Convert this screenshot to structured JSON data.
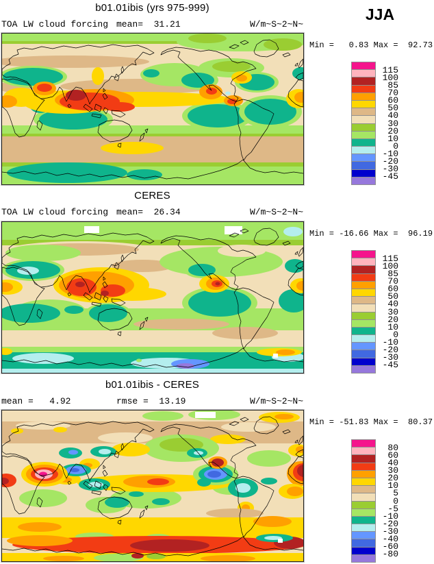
{
  "season": "JJA",
  "palette": [
    "#F5148C",
    "#FFB4BE",
    "#B22222",
    "#F23C14",
    "#FFA000",
    "#FFD700",
    "#DEB887",
    "#F2DFB8",
    "#9ACD32",
    "#A5E664",
    "#0FB48C",
    "#B4EEEE",
    "#6496FF",
    "#4169E1",
    "#0000CD",
    "#9678DC"
  ],
  "panels": [
    {
      "title": "b01.01ibis (yrs 975-999)",
      "variable": "TOA LW cloud forcing",
      "mean_label": "mean=  31.21",
      "units": "W/m~S~2~N~",
      "minmax": "Min =   0.83 Max =  92.73",
      "colorbar_labels": [
        "115",
        "100",
        "85",
        "70",
        "60",
        "50",
        "40",
        "30",
        "20",
        "10",
        "0",
        "-10",
        "-20",
        "-30",
        "-45"
      ]
    },
    {
      "title": "CERES",
      "variable": "TOA LW cloud forcing",
      "mean_label": "mean=  26.34",
      "units": "W/m~S~2~N~",
      "minmax": "Min = -16.66 Max =  96.19",
      "colorbar_labels": [
        "115",
        "100",
        "85",
        "70",
        "60",
        "50",
        "40",
        "30",
        "20",
        "10",
        "0",
        "-10",
        "-20",
        "-30",
        "-45"
      ]
    },
    {
      "title": "b01.01ibis - CERES",
      "mean_label": "mean =   4.92",
      "rmse_label": "rmse =  13.19",
      "units": "W/m~S~2~N~",
      "minmax": "Min = -51.83 Max =  80.37",
      "colorbar_labels": [
        "80",
        "60",
        "40",
        "30",
        "20",
        "10",
        "5",
        "0",
        "-5",
        "-10",
        "-20",
        "-30",
        "-40",
        "-60",
        "-80"
      ]
    }
  ],
  "chart_data": [
    {
      "type": "heatmap",
      "title": "b01.01ibis (yrs 975-999)",
      "variable": "TOA LW cloud forcing",
      "season": "JJA",
      "units": "W/m^2",
      "projection": "global lat-lon map, 0-360E left to right",
      "mean": 31.21,
      "min": 0.83,
      "max": 92.73,
      "contour_levels": [
        -45,
        -30,
        -20,
        -10,
        0,
        10,
        20,
        30,
        40,
        50,
        60,
        70,
        85,
        100,
        115
      ],
      "notable_features": [
        "maximum 60-90 W/m^2 over India / SE Asia warm pool (dark red core over Bay of Bengal)",
        "orange-red spots over Central America, northern South America and Arabia",
        "yellow 50-60 band along equatorial Pacific ITCZ",
        "teal 0-10 minima over subtropical SE Pacific, S Indian, W Atlantic oceans and Southern Ocean near 60S",
        "beige/tan 30-50 mid-latitudes, light green 10-20 polar bands"
      ]
    },
    {
      "type": "heatmap",
      "title": "CERES",
      "variable": "TOA LW cloud forcing",
      "season": "JJA",
      "units": "W/m^2",
      "projection": "global lat-lon map, 0-360E left to right",
      "mean": 26.34,
      "min": -16.66,
      "max": 96.19,
      "contour_levels": [
        -45,
        -30,
        -20,
        -10,
        0,
        10,
        20,
        30,
        40,
        50,
        60,
        70,
        85,
        100,
        115
      ],
      "notable_features": [
        "orange-red maximum over SE Asia warm pool and Central America",
        "more extensive green 10-30 mid-latitudes than model",
        "teal 0-10 over subtropical oceans and circum-Antarctic band with pale blue/purple patches below 0 near Antarctica"
      ]
    },
    {
      "type": "heatmap",
      "title": "b01.01ibis - CERES",
      "season": "JJA",
      "units": "W/m^2",
      "projection": "global lat-lon map, 0-360E left to right",
      "mean": 4.92,
      "rmse": 13.19,
      "min": -51.83,
      "max": 80.37,
      "contour_levels": [
        -80,
        -60,
        -40,
        -30,
        -20,
        -10,
        -5,
        0,
        5,
        10,
        20,
        30,
        40,
        60,
        80
      ],
      "notable_features": [
        "pink/magenta positive anomaly over Arabia",
        "royal-blue negative anomaly over Caribbean/Mexico and teal minima over Tibet, Indonesia, west South America",
        "yellow 5-10 positive band across southern mid-latitudes",
        "dark red 40-80 positive band along Antarctic coast",
        "noisy mix of tan/gold/green elsewhere"
      ]
    }
  ]
}
